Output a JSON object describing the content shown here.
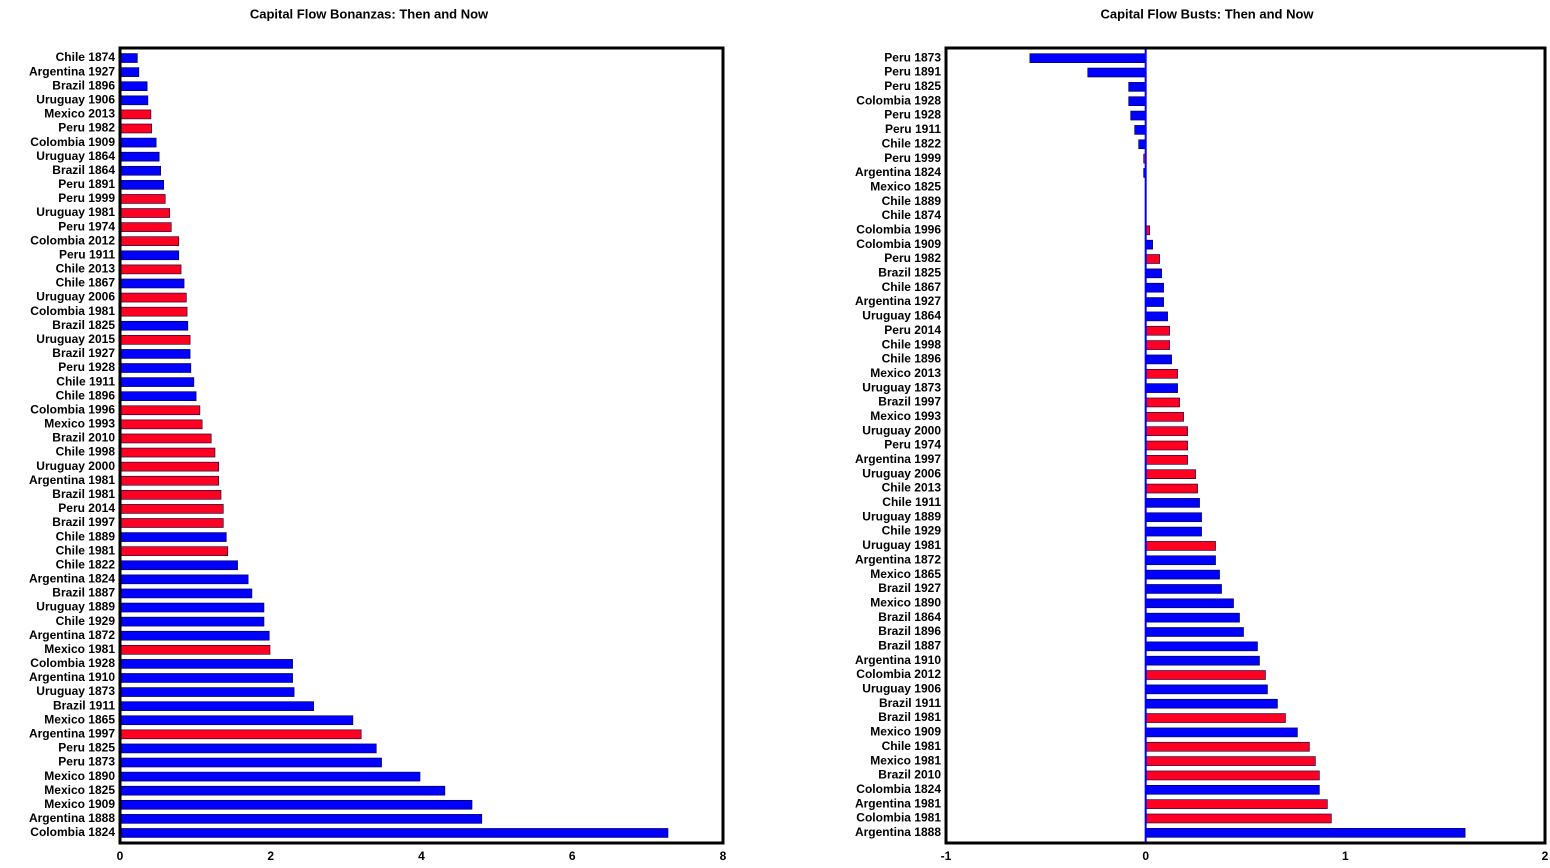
{
  "chart_data": [
    {
      "type": "barh",
      "title": "Capital Flow Bonanzas: Then and Now",
      "categories": [
        "Chile 1874",
        "Argentina 1927",
        "Brazil 1896",
        "Uruguay 1906",
        "Mexico 2013",
        "Peru 1982",
        "Colombia 1909",
        "Uruguay 1864",
        "Brazil 1864",
        "Peru 1891",
        "Peru 1999",
        "Uruguay 1981",
        "Peru 1974",
        "Colombia 2012",
        "Peru 1911",
        "Chile 2013",
        "Chile 1867",
        "Uruguay 2006",
        "Colombia 1981",
        "Brazil 1825",
        "Uruguay 2015",
        "Brazil 1927",
        "Peru 1928",
        "Chile 1911",
        "Chile 1896",
        "Colombia 1996",
        "Mexico 1993",
        "Brazil 2010",
        "Chile 1998",
        "Uruguay 2000",
        "Argentina 1981",
        "Brazil 1981",
        "Peru 2014",
        "Brazil 1997",
        "Chile 1889",
        "Chile 1981",
        "Chile 1822",
        "Argentina 1824",
        "Brazil 1887",
        "Uruguay 1889",
        "Chile 1929",
        "Argentina 1872",
        "Mexico 1981",
        "Colombia 1928",
        "Argentina 1910",
        "Uruguay 1873",
        "Brazil 1911",
        "Mexico 1865",
        "Argentina 1997",
        "Peru 1825",
        "Peru 1873",
        "Mexico 1890",
        "Mexico 1825",
        "Mexico 1909",
        "Argentina 1888",
        "Colombia 1824"
      ],
      "values": [
        0.23,
        0.25,
        0.36,
        0.37,
        0.41,
        0.42,
        0.48,
        0.52,
        0.54,
        0.58,
        0.6,
        0.66,
        0.68,
        0.78,
        0.78,
        0.81,
        0.85,
        0.88,
        0.89,
        0.9,
        0.93,
        0.93,
        0.94,
        0.98,
        1.01,
        1.06,
        1.09,
        1.21,
        1.26,
        1.31,
        1.31,
        1.34,
        1.37,
        1.37,
        1.41,
        1.43,
        1.56,
        1.7,
        1.75,
        1.91,
        1.91,
        1.98,
        1.99,
        2.29,
        2.29,
        2.31,
        2.57,
        3.09,
        3.2,
        3.4,
        3.47,
        3.98,
        4.31,
        4.67,
        4.8,
        7.27
      ],
      "colors": [
        "#0000ff",
        "#0000ff",
        "#0000ff",
        "#0000ff",
        "#ff0022",
        "#ff0022",
        "#0000ff",
        "#0000ff",
        "#0000ff",
        "#0000ff",
        "#ff0022",
        "#ff0022",
        "#ff0022",
        "#ff0022",
        "#0000ff",
        "#ff0022",
        "#0000ff",
        "#ff0022",
        "#ff0022",
        "#0000ff",
        "#ff0022",
        "#0000ff",
        "#0000ff",
        "#0000ff",
        "#0000ff",
        "#ff0022",
        "#ff0022",
        "#ff0022",
        "#ff0022",
        "#ff0022",
        "#ff0022",
        "#ff0022",
        "#ff0022",
        "#ff0022",
        "#0000ff",
        "#ff0022",
        "#0000ff",
        "#0000ff",
        "#0000ff",
        "#0000ff",
        "#0000ff",
        "#0000ff",
        "#ff0022",
        "#0000ff",
        "#0000ff",
        "#0000ff",
        "#0000ff",
        "#0000ff",
        "#ff0022",
        "#0000ff",
        "#0000ff",
        "#0000ff",
        "#0000ff",
        "#0000ff",
        "#0000ff",
        "#0000ff"
      ],
      "xlim": [
        0,
        8
      ],
      "xticks": [
        0,
        2,
        4,
        6,
        8
      ]
    },
    {
      "type": "barh",
      "title": "Capital Flow Busts: Then and Now",
      "categories": [
        "Peru 1873",
        "Peru 1891",
        "Peru 1825",
        "Colombia 1928",
        "Peru 1928",
        "Peru 1911",
        "Chile 1822",
        "Peru 1999",
        "Argentina 1824",
        "Mexico 1825",
        "Chile 1889",
        "Chile 1874",
        "Colombia 1996",
        "Colombia 1909",
        "Peru 1982",
        "Brazil 1825",
        "Chile 1867",
        "Argentina 1927",
        "Uruguay 1864",
        "Peru 2014",
        "Chile 1998",
        "Chile 1896",
        "Mexico 2013",
        "Uruguay 1873",
        "Brazil 1997",
        "Mexico 1993",
        "Uruguay 2000",
        "Peru 1974",
        "Argentina 1997",
        "Uruguay 2006",
        "Chile 2013",
        "Chile 1911",
        "Uruguay 1889",
        "Chile 1929",
        "Uruguay 1981",
        "Argentina 1872",
        "Mexico 1865",
        "Brazil 1927",
        "Mexico 1890",
        "Brazil 1864",
        "Brazil 1896",
        "Brazil 1887",
        "Argentina 1910",
        "Colombia 2012",
        "Uruguay 1906",
        "Brazil 1911",
        "Brazil 1981",
        "Mexico 1909",
        "Chile 1981",
        "Mexico 1981",
        "Brazil 2010",
        "Colombia 1824",
        "Argentina 1981",
        "Colombia 1981",
        "Argentina 1888"
      ],
      "values": [
        -0.58,
        -0.29,
        -0.085,
        -0.085,
        -0.075,
        -0.055,
        -0.035,
        -0.01,
        -0.01,
        0,
        0,
        0,
        0.02,
        0.035,
        0.07,
        0.08,
        0.09,
        0.09,
        0.11,
        0.12,
        0.12,
        0.13,
        0.16,
        0.16,
        0.17,
        0.19,
        0.21,
        0.21,
        0.21,
        0.25,
        0.26,
        0.27,
        0.28,
        0.28,
        0.35,
        0.35,
        0.37,
        0.38,
        0.44,
        0.47,
        0.49,
        0.56,
        0.57,
        0.6,
        0.61,
        0.66,
        0.7,
        0.76,
        0.82,
        0.85,
        0.87,
        0.87,
        0.91,
        0.93,
        1.6
      ],
      "colors": [
        "#0000ff",
        "#0000ff",
        "#0000ff",
        "#0000ff",
        "#0000ff",
        "#0000ff",
        "#0000ff",
        "#ff0022",
        "#0000ff",
        "#0000ff",
        "#0000ff",
        "#0000ff",
        "#ff0022",
        "#0000ff",
        "#ff0022",
        "#0000ff",
        "#0000ff",
        "#0000ff",
        "#0000ff",
        "#ff0022",
        "#ff0022",
        "#0000ff",
        "#ff0022",
        "#0000ff",
        "#ff0022",
        "#ff0022",
        "#ff0022",
        "#ff0022",
        "#ff0022",
        "#ff0022",
        "#ff0022",
        "#0000ff",
        "#0000ff",
        "#0000ff",
        "#ff0022",
        "#0000ff",
        "#0000ff",
        "#0000ff",
        "#0000ff",
        "#0000ff",
        "#0000ff",
        "#0000ff",
        "#0000ff",
        "#ff0022",
        "#0000ff",
        "#0000ff",
        "#ff0022",
        "#0000ff",
        "#ff0022",
        "#ff0022",
        "#ff0022",
        "#0000ff",
        "#ff0022",
        "#ff0022",
        "#0000ff"
      ],
      "xlim": [
        -1,
        2
      ],
      "xticks": [
        -1,
        0,
        1,
        2
      ]
    }
  ]
}
